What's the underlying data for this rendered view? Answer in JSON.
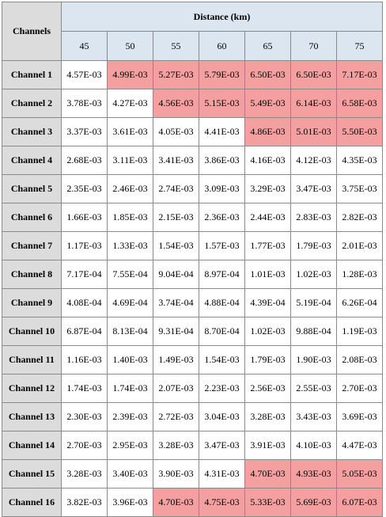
{
  "table": {
    "corner_label": "Channels",
    "group_label": "Distance (km)",
    "distances": [
      "45",
      "50",
      "55",
      "60",
      "65",
      "70",
      "75"
    ],
    "highlight_color": "#f4a0a0",
    "rows": [
      {
        "channel": "Channel 1",
        "values": [
          "4.57E-03",
          "4.99E-03",
          "5.27E-03",
          "5.79E-03",
          "6.50E-03",
          "6.50E-03",
          "7.17E-03"
        ],
        "highlight": [
          false,
          true,
          true,
          true,
          true,
          true,
          true
        ]
      },
      {
        "channel": "Channel 2",
        "values": [
          "3.78E-03",
          "4.27E-03",
          "4.56E-03",
          "5.15E-03",
          "5.49E-03",
          "6.14E-03",
          "6.58E-03"
        ],
        "highlight": [
          false,
          false,
          true,
          true,
          true,
          true,
          true
        ]
      },
      {
        "channel": "Channel 3",
        "values": [
          "3.37E-03",
          "3.61E-03",
          "4.05E-03",
          "4.41E-03",
          "4.86E-03",
          "5.01E-03",
          "5.50E-03"
        ],
        "highlight": [
          false,
          false,
          false,
          false,
          true,
          true,
          true
        ]
      },
      {
        "channel": "Channel 4",
        "values": [
          "2.68E-03",
          "3.11E-03",
          "3.41E-03",
          "3.86E-03",
          "4.16E-03",
          "4.12E-03",
          "4.35E-03"
        ],
        "highlight": [
          false,
          false,
          false,
          false,
          false,
          false,
          false
        ]
      },
      {
        "channel": "Channel 5",
        "values": [
          "2.35E-03",
          "2.46E-03",
          "2.74E-03",
          "3.09E-03",
          "3.29E-03",
          "3.47E-03",
          "3.75E-03"
        ],
        "highlight": [
          false,
          false,
          false,
          false,
          false,
          false,
          false
        ]
      },
      {
        "channel": "Channel 6",
        "values": [
          "1.66E-03",
          "1.85E-03",
          "2.15E-03",
          "2.36E-03",
          "2.44E-03",
          "2.83E-03",
          "2.82E-03"
        ],
        "highlight": [
          false,
          false,
          false,
          false,
          false,
          false,
          false
        ]
      },
      {
        "channel": "Channel 7",
        "values": [
          "1.17E-03",
          "1.33E-03",
          "1.54E-03",
          "1.57E-03",
          "1.77E-03",
          "1.79E-03",
          "2.01E-03"
        ],
        "highlight": [
          false,
          false,
          false,
          false,
          false,
          false,
          false
        ]
      },
      {
        "channel": "Channel 8",
        "values": [
          "7.17E-04",
          "7.55E-04",
          "9.04E-04",
          "8.97E-04",
          "1.01E-03",
          "1.02E-03",
          "1.28E-03"
        ],
        "highlight": [
          false,
          false,
          false,
          false,
          false,
          false,
          false
        ]
      },
      {
        "channel": "Channel 9",
        "values": [
          "4.08E-04",
          "4.69E-04",
          "3.74E-04",
          "4.88E-04",
          "4.39E-04",
          "5.19E-04",
          "6.26E-04"
        ],
        "highlight": [
          false,
          false,
          false,
          false,
          false,
          false,
          false
        ]
      },
      {
        "channel": "Channel 10",
        "values": [
          "6.87E-04",
          "8.13E-04",
          "9.31E-04",
          "8.70E-04",
          "1.02E-03",
          "9.88E-04",
          "1.19E-03"
        ],
        "highlight": [
          false,
          false,
          false,
          false,
          false,
          false,
          false
        ]
      },
      {
        "channel": "Channel 11",
        "values": [
          "1.16E-03",
          "1.40E-03",
          "1.49E-03",
          "1.54E-03",
          "1.79E-03",
          "1.90E-03",
          "2.08E-03"
        ],
        "highlight": [
          false,
          false,
          false,
          false,
          false,
          false,
          false
        ]
      },
      {
        "channel": "Channel 12",
        "values": [
          "1.74E-03",
          "1.74E-03",
          "2.07E-03",
          "2.23E-03",
          "2.56E-03",
          "2.55E-03",
          "2.70E-03"
        ],
        "highlight": [
          false,
          false,
          false,
          false,
          false,
          false,
          false
        ]
      },
      {
        "channel": "Channel 13",
        "values": [
          "2.30E-03",
          "2.39E-03",
          "2.72E-03",
          "3.04E-03",
          "3.28E-03",
          "3.43E-03",
          "3.69E-03"
        ],
        "highlight": [
          false,
          false,
          false,
          false,
          false,
          false,
          false
        ]
      },
      {
        "channel": "Channel 14",
        "values": [
          "2.70E-03",
          "2.95E-03",
          "3.28E-03",
          "3.47E-03",
          "3.91E-03",
          "4.10E-03",
          "4.47E-03"
        ],
        "highlight": [
          false,
          false,
          false,
          false,
          false,
          false,
          false
        ]
      },
      {
        "channel": "Channel 15",
        "values": [
          "3.28E-03",
          "3.40E-03",
          "3.90E-03",
          "4.31E-03",
          "4.70E-03",
          "4.93E-03",
          "5.05E-03"
        ],
        "highlight": [
          false,
          false,
          false,
          false,
          true,
          true,
          true
        ]
      },
      {
        "channel": "Channel 16",
        "values": [
          "3.82E-03",
          "3.96E-03",
          "4.70E-03",
          "4.75E-03",
          "5.33E-03",
          "5.69E-03",
          "6.07E-03"
        ],
        "highlight": [
          false,
          false,
          true,
          true,
          true,
          true,
          true
        ]
      }
    ]
  }
}
